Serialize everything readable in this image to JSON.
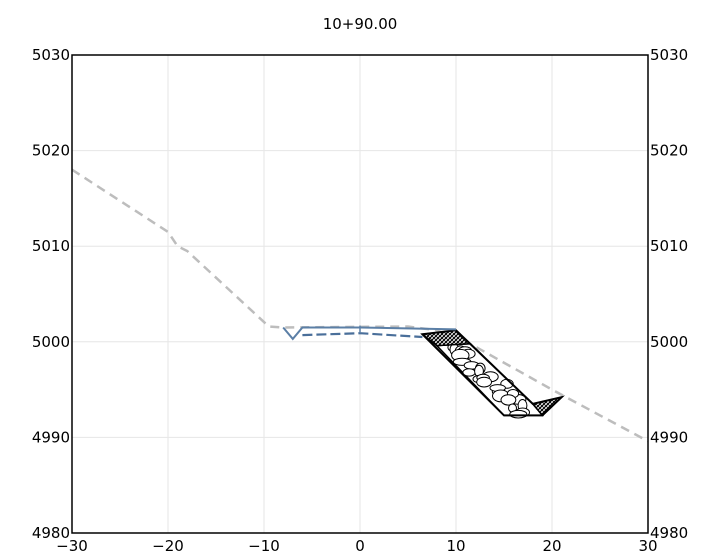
{
  "title": "10+90.00",
  "chart_data": {
    "type": "line",
    "title": "10+90.00",
    "xlim": [
      -30,
      30
    ],
    "ylim": [
      4980,
      5030
    ],
    "x_ticks": [
      -30,
      -20,
      -10,
      0,
      10,
      20,
      30
    ],
    "x_tick_labels": [
      "-30",
      "-20",
      "-10",
      "0",
      "10",
      "20",
      "30"
    ],
    "y_ticks": [
      4980,
      4990,
      5000,
      5010,
      5020,
      5030
    ],
    "y_tick_labels_left": [
      "4980",
      "4990",
      "5000",
      "5010",
      "5020",
      "5030"
    ],
    "y_tick_labels_right": [
      "4980",
      "4990",
      "5000",
      "5010",
      "5020",
      "5030"
    ],
    "grid": true,
    "series": [
      {
        "role": "existing-ground",
        "style": "dashed",
        "color": "#bdbdbd",
        "points": [
          [
            -30,
            5018
          ],
          [
            -20,
            5011.5
          ],
          [
            -19,
            5010
          ],
          [
            -18,
            5009.5
          ],
          [
            -9.5,
            5001.6
          ],
          [
            -8,
            5001.5
          ],
          [
            5,
            5001.6
          ],
          [
            8,
            5001.2
          ],
          [
            12,
            4999.5
          ],
          [
            20,
            4995
          ],
          [
            30,
            4989.6
          ]
        ]
      },
      {
        "role": "proposed-top",
        "style": "solid",
        "color": "#5b7fa6",
        "points": [
          [
            -8,
            5001.5
          ],
          [
            -7,
            5000.3
          ],
          [
            -6,
            5001.5
          ],
          [
            0,
            5001.5
          ],
          [
            10,
            5001.3
          ]
        ]
      },
      {
        "role": "proposed-subgrade",
        "style": "dashed",
        "color": "#4a6f9a",
        "points": [
          [
            -6,
            5000.7
          ],
          [
            0,
            5000.9
          ],
          [
            6.5,
            5000.5
          ]
        ]
      },
      {
        "role": "riprap-slope",
        "style": "outline",
        "color": "#000000",
        "points": [
          [
            6.5,
            5000.8
          ],
          [
            10,
            5001.2
          ],
          [
            18,
            4993.5
          ],
          [
            21,
            4994.2
          ],
          [
            19,
            4992.3
          ],
          [
            15,
            4992.3
          ]
        ]
      }
    ],
    "hatch_regions": [
      {
        "role": "filter-upper",
        "points": [
          [
            6.5,
            5000.8
          ],
          [
            10,
            5001.2
          ],
          [
            11.5,
            4999.8
          ],
          [
            8,
            4999.6
          ]
        ]
      },
      {
        "role": "filter-lower",
        "points": [
          [
            18,
            4993.5
          ],
          [
            21,
            4994.2
          ],
          [
            19,
            4992.3
          ]
        ]
      }
    ],
    "rock_fill": {
      "role": "riprap-rock",
      "points": [
        [
          8,
          4999.6
        ],
        [
          11.5,
          4999.8
        ],
        [
          18,
          4993.5
        ],
        [
          19,
          4992.3
        ],
        [
          15,
          4992.3
        ]
      ]
    }
  },
  "colors": {
    "grid": "#e6e6e6",
    "axis": "#000000",
    "ground": "#bdbdbd",
    "proposed": "#5b7fa6"
  }
}
